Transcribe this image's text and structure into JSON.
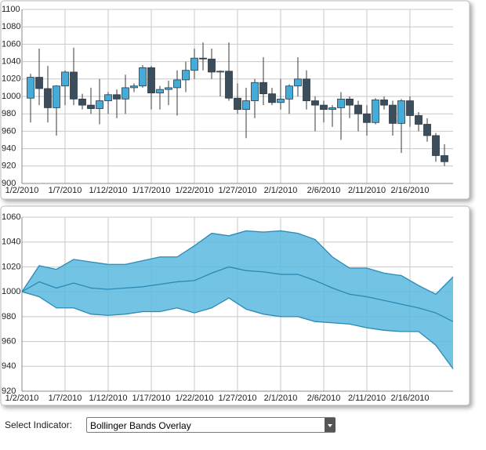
{
  "chart_data": [
    {
      "type": "candlestick",
      "x": [
        "1/3/2010",
        "1/4/2010",
        "1/5/2010",
        "1/6/2010",
        "1/7/2010",
        "1/8/2010",
        "1/9/2010",
        "1/10/2010",
        "1/11/2010",
        "1/12/2010",
        "1/13/2010",
        "1/14/2010",
        "1/15/2010",
        "1/16/2010",
        "1/17/2010",
        "1/18/2010",
        "1/19/2010",
        "1/20/2010",
        "1/21/2010",
        "1/22/2010",
        "1/23/2010",
        "1/24/2010",
        "1/25/2010",
        "1/26/2010",
        "1/27/2010",
        "1/28/2010",
        "1/29/2010",
        "1/30/2010",
        "1/31/2010",
        "2/1/2010",
        "2/2/2010",
        "2/3/2010",
        "2/4/2010",
        "2/5/2010",
        "2/6/2010",
        "2/7/2010",
        "2/8/2010",
        "2/9/2010",
        "2/10/2010",
        "2/11/2010",
        "2/12/2010",
        "2/13/2010",
        "2/14/2010",
        "2/15/2010",
        "2/16/2010",
        "2/17/2010",
        "2/18/2010",
        "2/19/2010",
        "2/20/2010"
      ],
      "open": [
        998,
        1022,
        1009,
        987,
        1012,
        1028,
        997,
        990,
        986,
        995,
        1002,
        997,
        1010,
        1012,
        1033,
        1004,
        1008,
        1010,
        1019,
        1030,
        1044,
        1043,
        1028,
        1029,
        998,
        985,
        995,
        1016,
        1003,
        993,
        997,
        1012,
        1020,
        995,
        990,
        985,
        987,
        997,
        990,
        980,
        970,
        996,
        990,
        969,
        995,
        978,
        968,
        955,
        932
      ],
      "high": [
        1026,
        1055,
        1035,
        1013,
        1030,
        1056,
        1003,
        1010,
        1020,
        1005,
        1008,
        1025,
        1015,
        1036,
        1035,
        1012,
        1018,
        1030,
        1040,
        1055,
        1062,
        1055,
        1030,
        1062,
        1015,
        1010,
        1020,
        1045,
        1010,
        1020,
        1014,
        1045,
        1030,
        1000,
        995,
        990,
        1005,
        1000,
        995,
        990,
        998,
        1000,
        995,
        997,
        1000,
        982,
        975,
        958,
        945
      ],
      "low": [
        970,
        990,
        970,
        955,
        990,
        990,
        985,
        980,
        968,
        980,
        975,
        980,
        1005,
        1010,
        985,
        985,
        990,
        978,
        1005,
        1020,
        1030,
        1020,
        1000,
        995,
        980,
        952,
        975,
        990,
        990,
        985,
        980,
        1000,
        985,
        960,
        970,
        965,
        950,
        975,
        960,
        955,
        968,
        985,
        955,
        935,
        965,
        960,
        948,
        925,
        920
      ],
      "close": [
        1022,
        1009,
        987,
        1012,
        1028,
        997,
        990,
        986,
        995,
        1002,
        997,
        1010,
        1012,
        1033,
        1004,
        1008,
        1010,
        1019,
        1030,
        1044,
        1043,
        1028,
        1029,
        998,
        985,
        995,
        1016,
        1003,
        993,
        997,
        1012,
        1020,
        995,
        990,
        985,
        987,
        997,
        990,
        980,
        970,
        996,
        990,
        969,
        995,
        978,
        968,
        955,
        932,
        925
      ],
      "up_color": "#45acda",
      "down_color": "#3c4d5c",
      "xlim": [
        "1/2/2010",
        "2/21/2010"
      ],
      "xticks": [
        "1/2/2010",
        "1/7/2010",
        "1/12/2010",
        "1/17/2010",
        "1/22/2010",
        "1/27/2010",
        "2/1/2010",
        "2/6/2010",
        "2/11/2010",
        "2/16/2010"
      ],
      "ylim": [
        900,
        1100
      ],
      "yticks": [
        900,
        920,
        940,
        960,
        980,
        1000,
        1020,
        1040,
        1060,
        1080,
        1100
      ],
      "grid": true
    },
    {
      "type": "band",
      "x": [
        "1/2/2010",
        "1/4/2010",
        "1/6/2010",
        "1/8/2010",
        "1/10/2010",
        "1/12/2010",
        "1/14/2010",
        "1/16/2010",
        "1/18/2010",
        "1/20/2010",
        "1/22/2010",
        "1/24/2010",
        "1/26/2010",
        "1/28/2010",
        "1/30/2010",
        "2/1/2010",
        "2/3/2010",
        "2/5/2010",
        "2/7/2010",
        "2/9/2010",
        "2/11/2010",
        "2/13/2010",
        "2/15/2010",
        "2/17/2010",
        "2/19/2010",
        "2/21/2010"
      ],
      "upper": [
        1000,
        1021,
        1018,
        1026,
        1024,
        1022,
        1022,
        1025,
        1028,
        1028,
        1037,
        1047,
        1045,
        1049,
        1048,
        1049,
        1047,
        1042,
        1028,
        1019,
        1019,
        1015,
        1013,
        1005,
        998,
        1012
      ],
      "middle": [
        1000,
        1008,
        1003,
        1007,
        1003,
        1002,
        1003,
        1004,
        1006,
        1008,
        1009,
        1015,
        1020,
        1017,
        1016,
        1014,
        1014,
        1009,
        1003,
        998,
        996,
        993,
        990,
        987,
        983,
        976
      ],
      "lower": [
        1000,
        996,
        987,
        987,
        982,
        981,
        982,
        984,
        984,
        987,
        983,
        987,
        995,
        986,
        982,
        980,
        980,
        976,
        975,
        974,
        971,
        969,
        968,
        968,
        957,
        938
      ],
      "color": "#5bb9e0",
      "line_color": "#2b8ab4",
      "xlim": [
        "1/2/2010",
        "2/21/2010"
      ],
      "xticks": [
        "1/2/2010",
        "1/7/2010",
        "1/12/2010",
        "1/17/2010",
        "1/22/2010",
        "1/27/2010",
        "2/1/2010",
        "2/6/2010",
        "2/11/2010",
        "2/16/2010"
      ],
      "ylim": [
        920,
        1060
      ],
      "yticks": [
        920,
        940,
        960,
        980,
        1000,
        1020,
        1040,
        1060
      ],
      "grid": true
    }
  ],
  "controls": {
    "label": "Select Indicator:",
    "selected": "Bollinger Bands Overlay"
  }
}
